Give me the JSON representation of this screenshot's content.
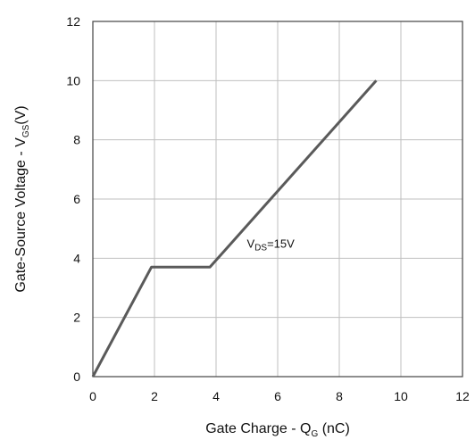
{
  "chart_data": {
    "type": "line",
    "x": [
      0,
      1.9,
      3.8,
      9.2
    ],
    "series": [
      {
        "values": [
          0,
          3.7,
          3.7,
          10
        ]
      }
    ],
    "xlim": [
      0,
      12
    ],
    "ylim": [
      0,
      12
    ],
    "xticks": [
      "0",
      "2",
      "4",
      "6",
      "8",
      "10",
      "12"
    ],
    "yticks": [
      "0",
      "2",
      "4",
      "6",
      "8",
      "10",
      "12"
    ],
    "xlabel": {
      "main": "Gate Charge - Q",
      "sub": "G",
      "unit": " (nC)"
    },
    "ylabel": {
      "main": "Gate-Source Voltage - V",
      "sub": "GS",
      "unit": "(V)"
    },
    "annotation": {
      "main": "V",
      "sub": "DS",
      "rest": "=15V",
      "x": 5,
      "y": 4.3
    },
    "grid": true,
    "colors": {
      "line": "#5a5a5a",
      "grid": "#bfbfbf",
      "axis": "#444444"
    }
  }
}
